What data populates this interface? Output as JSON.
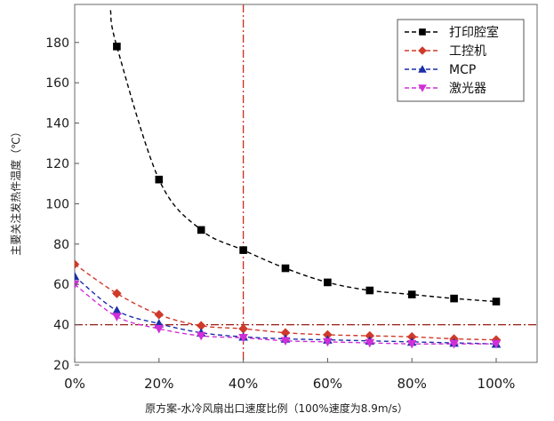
{
  "chart_data": {
    "type": "line",
    "title": "",
    "xlabel": "原方案-水冷风扇出口速度比例（100%速度为8.9m/s）",
    "ylabel": "主要关注发热件温度（℃）",
    "xlim": [
      0,
      110
    ],
    "ylim": [
      20,
      190
    ],
    "x_ticks": [
      0,
      20,
      40,
      60,
      80,
      100
    ],
    "x_tick_labels": [
      "0%",
      "20%",
      "40%",
      "60%",
      "80%",
      "100%"
    ],
    "y_ticks": [
      20,
      40,
      60,
      80,
      100,
      120,
      140,
      160,
      180
    ],
    "y_tick_labels": [
      "20",
      "40",
      "60",
      "80",
      "100",
      "120",
      "140",
      "160",
      "180"
    ],
    "legend_position": "top-right",
    "reference_lines": [
      {
        "axis": "x",
        "value": 40,
        "style": "dash-dot",
        "color": "#cc2a1f"
      },
      {
        "axis": "y",
        "value": 40,
        "style": "dash-dot",
        "color": "#9a1a12"
      }
    ],
    "series": [
      {
        "name": "打印腔室",
        "marker": "square",
        "color": "#000000",
        "x": [
          10,
          20,
          30,
          40,
          50,
          60,
          70,
          80,
          90,
          100
        ],
        "values": [
          178,
          112,
          87,
          77,
          68,
          61,
          57,
          55,
          53,
          51.5
        ],
        "curve_start": {
          "x": 8.5,
          "y": 196
        }
      },
      {
        "name": "工控机",
        "marker": "diamond",
        "color": "#d03a2a",
        "x": [
          0,
          10,
          20,
          30,
          40,
          50,
          60,
          70,
          80,
          90,
          100
        ],
        "values": [
          70,
          55.5,
          45,
          39.5,
          38,
          36,
          35,
          34.5,
          34,
          33,
          32.5
        ]
      },
      {
        "name": "MCP",
        "marker": "triangle-up",
        "color": "#1a2fa8",
        "x": [
          0,
          10,
          20,
          30,
          40,
          50,
          60,
          70,
          80,
          90,
          100
        ],
        "values": [
          64,
          47,
          40.5,
          36,
          34,
          33,
          32.5,
          32,
          31.5,
          31,
          30.5
        ]
      },
      {
        "name": "激光器",
        "marker": "triangle-down",
        "color": "#d02fd8",
        "x": [
          0,
          10,
          20,
          30,
          40,
          50,
          60,
          70,
          80,
          90,
          100
        ],
        "values": [
          60,
          44,
          38,
          34.5,
          33.5,
          32,
          31.5,
          31,
          30.5,
          30.5,
          30.5
        ]
      }
    ]
  }
}
